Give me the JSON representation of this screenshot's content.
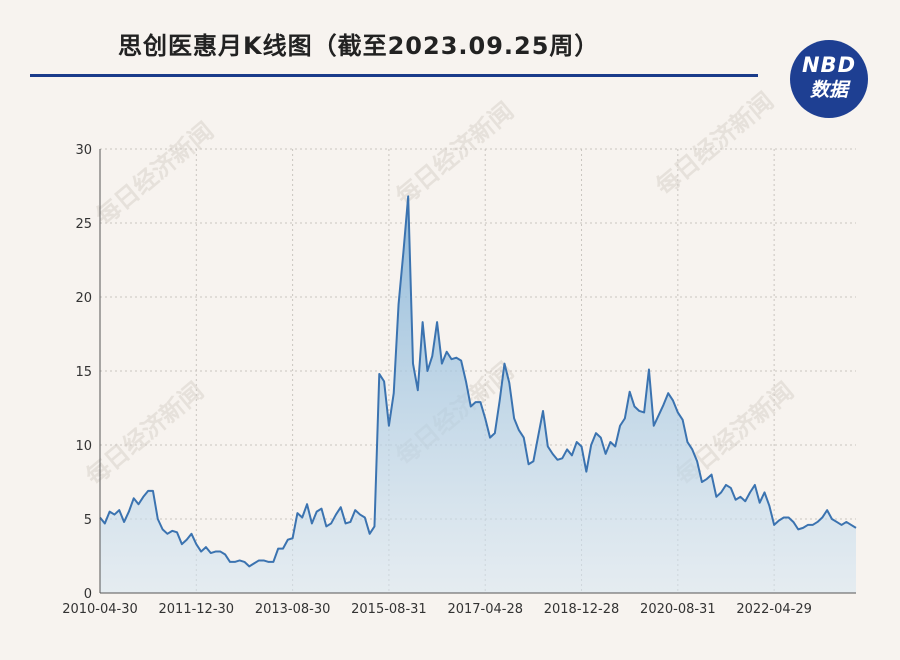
{
  "header": {
    "title": "思创医惠月K线图（截至2023.09.25周）",
    "logo_line1": "NBD",
    "logo_line2": "数据",
    "logo_color": "#1e3f92",
    "rule_color": "#1a3b8a"
  },
  "watermark": {
    "text": "每日经济新闻"
  },
  "chart_data": {
    "type": "area",
    "title": "思创医惠月K线图（截至2023.09.25周）",
    "xlabel": "",
    "ylabel": "",
    "ylim": [
      0,
      30
    ],
    "yticks": [
      0,
      5,
      10,
      15,
      20,
      25,
      30
    ],
    "xticks": [
      "2010-04-30",
      "2011-12-30",
      "2013-08-30",
      "2015-08-31",
      "2017-04-28",
      "2018-12-28",
      "2020-08-31",
      "2022-04-29"
    ],
    "grid": true,
    "line_color": "#3b73b0",
    "fill_color": "#a9cce3",
    "values": [
      5.1,
      4.7,
      5.5,
      5.3,
      5.6,
      4.8,
      5.5,
      6.4,
      6.0,
      6.5,
      6.9,
      6.9,
      5.0,
      4.3,
      4.0,
      4.2,
      4.1,
      3.3,
      3.6,
      4.0,
      3.3,
      2.8,
      3.1,
      2.7,
      2.8,
      2.8,
      2.6,
      2.1,
      2.1,
      2.2,
      2.1,
      1.8,
      2.0,
      2.2,
      2.2,
      2.1,
      2.1,
      3.0,
      3.0,
      3.6,
      3.7,
      5.4,
      5.1,
      6.0,
      4.7,
      5.5,
      5.7,
      4.5,
      4.7,
      5.3,
      5.8,
      4.7,
      4.8,
      5.6,
      5.3,
      5.1,
      4.0,
      4.5,
      14.8,
      14.3,
      11.3,
      13.5,
      19.5,
      23.0,
      26.8,
      15.5,
      13.7,
      18.3,
      15.0,
      16.0,
      18.3,
      15.5,
      16.3,
      15.8,
      15.9,
      15.7,
      14.3,
      12.6,
      12.9,
      12.9,
      11.8,
      10.5,
      10.8,
      13.0,
      15.5,
      14.2,
      11.8,
      11.0,
      10.5,
      8.7,
      8.9,
      10.6,
      12.3,
      9.9,
      9.4,
      9.0,
      9.1,
      9.7,
      9.3,
      10.2,
      9.9,
      8.2,
      10.0,
      10.8,
      10.5,
      9.4,
      10.2,
      9.9,
      11.3,
      11.8,
      13.6,
      12.6,
      12.3,
      12.2,
      15.1,
      11.3,
      12.0,
      12.7,
      13.5,
      13.0,
      12.2,
      11.7,
      10.2,
      9.7,
      8.9,
      7.5,
      7.7,
      8.0,
      6.5,
      6.8,
      7.3,
      7.1,
      6.3,
      6.5,
      6.2,
      6.8,
      7.3,
      6.1,
      6.8,
      5.9,
      4.6,
      4.9,
      5.1,
      5.1,
      4.8,
      4.3,
      4.4,
      4.6,
      4.6,
      4.8,
      5.1,
      5.6,
      5.0,
      4.8,
      4.6,
      4.8,
      4.6,
      4.4
    ]
  }
}
